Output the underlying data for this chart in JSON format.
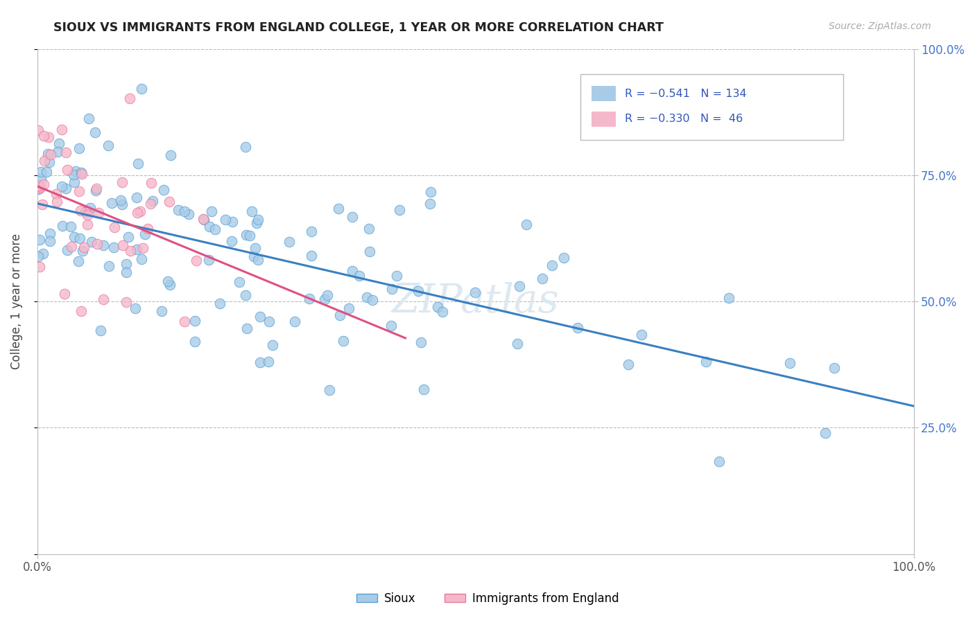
{
  "title": "SIOUX VS IMMIGRANTS FROM ENGLAND COLLEGE, 1 YEAR OR MORE CORRELATION CHART",
  "source_text": "Source: ZipAtlas.com",
  "ylabel": "College, 1 year or more",
  "xlim": [
    0.0,
    1.0
  ],
  "ylim": [
    0.0,
    1.0
  ],
  "sioux_color": "#a8cce8",
  "immigrants_color": "#f5b8cb",
  "sioux_edge_color": "#5a9fd4",
  "immigrants_edge_color": "#e8789a",
  "sioux_line_color": "#3a7fc1",
  "immigrants_line_color": "#e05080",
  "background_color": "#ffffff",
  "grid_color": "#bbbbbb",
  "sioux_label": "Sioux",
  "immigrants_label": "Immigrants from England",
  "watermark": "ZIPatlas",
  "legend_text1": "R = −0.541   N = 134",
  "legend_text2": "R = −0.330   N =  46"
}
